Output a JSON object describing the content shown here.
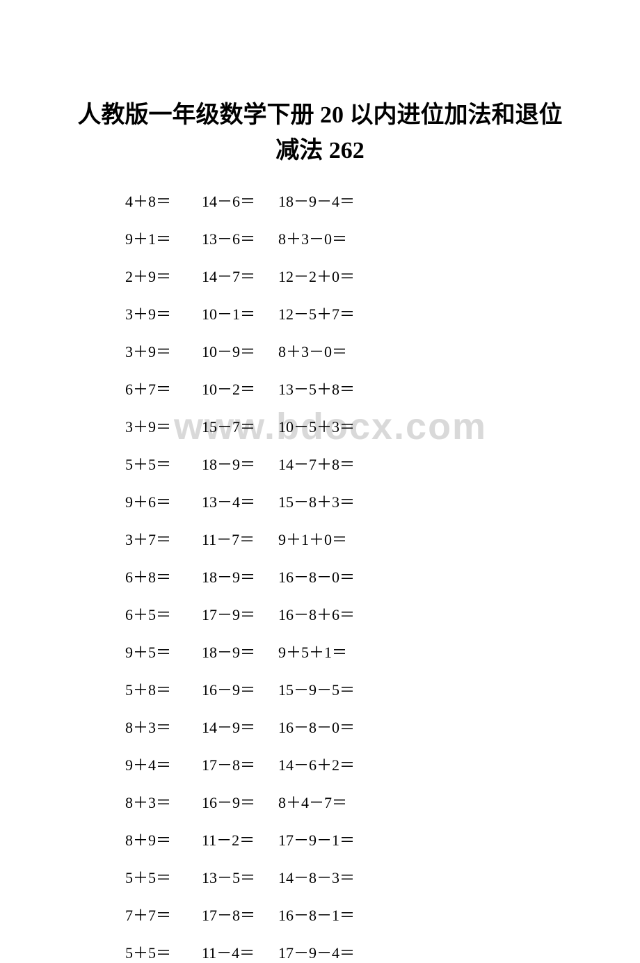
{
  "title_line1": "人教版一年级数学下册 20 以内进位加法和退位",
  "title_line2": "减法 262",
  "watermark": "www.bdocx.com",
  "text_color": "#000000",
  "watermark_color": "#d9d9d9",
  "background_color": "#ffffff",
  "title_fontsize": 34,
  "body_fontsize": 22,
  "watermark_fontsize": 54,
  "rows": [
    {
      "c1": "4＋8＝",
      "c2": "14－6＝",
      "c3": "18－9－4＝"
    },
    {
      "c1": "9＋1＝",
      "c2": "13－6＝",
      "c3": "8＋3－0＝"
    },
    {
      "c1": "2＋9＝",
      "c2": "14－7＝",
      "c3": "12－2＋0＝"
    },
    {
      "c1": "3＋9＝",
      "c2": "10－1＝",
      "c3": "12－5＋7＝"
    },
    {
      "c1": "3＋9＝",
      "c2": "10－9＝",
      "c3": "8＋3－0＝"
    },
    {
      "c1": "6＋7＝",
      "c2": "10－2＝",
      "c3": "13－5＋8＝"
    },
    {
      "c1": "3＋9＝",
      "c2": "15－7＝",
      "c3": "10－5＋3＝"
    },
    {
      "c1": "5＋5＝",
      "c2": "18－9＝",
      "c3": "14－7＋8＝"
    },
    {
      "c1": "9＋6＝",
      "c2": "13－4＝",
      "c3": "15－8＋3＝"
    },
    {
      "c1": "3＋7＝",
      "c2": "11－7＝",
      "c3": "9＋1＋0＝"
    },
    {
      "c1": "6＋8＝",
      "c2": "18－9＝",
      "c3": "16－8－0＝"
    },
    {
      "c1": "6＋5＝",
      "c2": "17－9＝",
      "c3": "16－8＋6＝"
    },
    {
      "c1": "9＋5＝",
      "c2": "18－9＝",
      "c3": "9＋5＋1＝"
    },
    {
      "c1": "5＋8＝",
      "c2": "16－9＝",
      "c3": "15－9－5＝"
    },
    {
      "c1": "8＋3＝",
      "c2": "14－9＝",
      "c3": "16－8－0＝"
    },
    {
      "c1": "9＋4＝",
      "c2": "17－8＝",
      "c3": "14－6＋2＝"
    },
    {
      "c1": "8＋3＝",
      "c2": "16－9＝",
      "c3": "8＋4－7＝"
    },
    {
      "c1": "8＋9＝",
      "c2": "11－2＝",
      "c3": "17－9－1＝"
    },
    {
      "c1": "5＋5＝",
      "c2": "13－5＝",
      "c3": "14－8－3＝"
    },
    {
      "c1": "7＋7＝",
      "c2": "17－8＝",
      "c3": "16－8－1＝"
    },
    {
      "c1": "5＋5＝",
      "c2": "11－4＝",
      "c3": "17－9－4＝"
    }
  ]
}
